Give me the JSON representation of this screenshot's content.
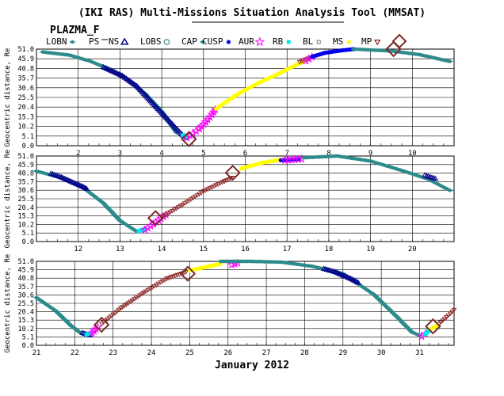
{
  "title": "(IKI RAS) Multi-Missions Situation Analysis Tool (MMSAT)",
  "subtitle": "PLAZMA_F",
  "x_axis_title": "January 2012",
  "legend": [
    {
      "label": "LOBN",
      "symbol": "diamond-fill",
      "color": "#2e8b8b"
    },
    {
      "label": "PS",
      "symbol": "bar",
      "color": "#2e8b8b"
    },
    {
      "label": "NS",
      "symbol": "triangle",
      "color": "#00008b"
    },
    {
      "label": "LOBS",
      "symbol": "circle",
      "color": "#2e8b8b"
    },
    {
      "label": "CAP",
      "symbol": "diamond-fill",
      "color": "#2e8b8b"
    },
    {
      "label": "CUSP",
      "symbol": "dot",
      "color": "#0000ee"
    },
    {
      "label": "AUR",
      "symbol": "star",
      "color": "#ff00ff"
    },
    {
      "label": "RB",
      "symbol": "square-fill",
      "color": "#00e5ee"
    },
    {
      "label": "BL",
      "symbol": "square",
      "color": "#777777"
    },
    {
      "label": "MS",
      "symbol": "dot",
      "color": "#ffff00"
    },
    {
      "label": "MP",
      "symbol": "triangle-down",
      "color": "#8b2323"
    },
    {
      "label": "",
      "symbol": "big-diamond",
      "color": "#7a2a2a"
    }
  ],
  "colors": {
    "PS": "#2e8b8b",
    "NS": "#00008b",
    "CUSP": "#0000ee",
    "AUR": "#ff00ff",
    "RB": "#00e5ee",
    "MS": "#ffff00",
    "MP": "#8b2323",
    "BIGMP": "#7a2a2a"
  },
  "chart_data": [
    {
      "type": "scatter",
      "ylabel": "Geocentric distance, Re",
      "xlim": [
        1,
        11
      ],
      "ylim": [
        0,
        51
      ],
      "xticks": [
        2,
        3,
        4,
        5,
        6,
        7,
        8,
        9,
        10
      ],
      "yticks": [
        0.0,
        5.1,
        10.2,
        15.3,
        20.4,
        25.5,
        30.6,
        35.7,
        40.8,
        45.9,
        51.0
      ],
      "segments": [
        {
          "region": "PS",
          "pts": [
            [
              1.15,
              49.5
            ],
            [
              1.8,
              47.8
            ],
            [
              2.3,
              44.5
            ],
            [
              2.8,
              40.0
            ],
            [
              3.2,
              34.5
            ],
            [
              3.6,
              27.5
            ],
            [
              4.0,
              18.0
            ],
            [
              4.2,
              12.0
            ],
            [
              4.35,
              7.0
            ]
          ]
        },
        {
          "region": "NS",
          "pts": [
            [
              2.6,
              41.5
            ],
            [
              3.05,
              37.0
            ],
            [
              3.4,
              31.5
            ],
            [
              4.5,
              5.5
            ],
            [
              4.6,
              4.5
            ]
          ]
        },
        {
          "region": "RB",
          "pts": [
            [
              4.5,
              5.6
            ],
            [
              4.6,
              4.8
            ]
          ]
        },
        {
          "region": "AUR",
          "pts": [
            [
              4.6,
              4.2
            ],
            [
              4.75,
              6.5
            ],
            [
              4.9,
              9.0
            ],
            [
              5.05,
              12.5
            ],
            [
              5.2,
              16.5
            ],
            [
              5.28,
              19.0
            ]
          ]
        },
        {
          "region": "MS",
          "pts": [
            [
              5.3,
              19.5
            ],
            [
              5.8,
              27.0
            ],
            [
              6.3,
              33.0
            ],
            [
              6.8,
              38.0
            ],
            [
              7.2,
              42.5
            ],
            [
              7.4,
              44.5
            ]
          ]
        },
        {
          "region": "MP",
          "pts": [
            [
              7.3,
              44.2
            ],
            [
              7.55,
              46.5
            ]
          ]
        },
        {
          "region": "AUR",
          "pts": [
            [
              7.45,
              44.8
            ],
            [
              7.6,
              46.8
            ]
          ]
        },
        {
          "region": "CUSP",
          "pts": [
            [
              7.6,
              47.0
            ],
            [
              7.9,
              49.0
            ],
            [
              8.3,
              50.3
            ],
            [
              8.6,
              51.0
            ]
          ]
        },
        {
          "region": "PS",
          "pts": [
            [
              8.6,
              51.0
            ],
            [
              9.5,
              50.0
            ],
            [
              10.2,
              48.0
            ],
            [
              10.9,
              44.5
            ]
          ]
        }
      ],
      "big_markers": [
        [
          4.65,
          3.5
        ],
        [
          9.55,
          51.0
        ]
      ]
    },
    {
      "type": "scatter",
      "ylabel": "Geocentric distance, Re",
      "xlim": [
        11,
        21
      ],
      "ylim": [
        0,
        51
      ],
      "xticks": [
        12,
        13,
        14,
        15,
        16,
        17,
        18,
        19,
        20
      ],
      "yticks": [
        0.0,
        5.1,
        10.2,
        15.3,
        20.4,
        25.5,
        30.6,
        35.7,
        40.8,
        45.9,
        51.0
      ],
      "segments": [
        {
          "region": "PS",
          "pts": [
            [
              11.0,
              42.0
            ],
            [
              11.6,
              38.0
            ],
            [
              12.1,
              32.5
            ],
            [
              12.6,
              23.0
            ],
            [
              13.0,
              12.5
            ],
            [
              13.4,
              6.0
            ]
          ]
        },
        {
          "region": "NS",
          "pts": [
            [
              11.35,
              40.5
            ],
            [
              11.6,
              38.3
            ],
            [
              12.1,
              32.8
            ],
            [
              12.2,
              31.5
            ]
          ]
        },
        {
          "region": "RB",
          "pts": [
            [
              13.45,
              6.3
            ],
            [
              13.6,
              7.5
            ]
          ]
        },
        {
          "region": "AUR",
          "pts": [
            [
              13.6,
              7.0
            ],
            [
              13.8,
              10.5
            ],
            [
              14.1,
              16.0
            ]
          ]
        },
        {
          "region": "MP",
          "pts": [
            [
              14.0,
              14.5
            ],
            [
              14.5,
              22.0
            ],
            [
              15.0,
              30.0
            ],
            [
              15.5,
              36.0
            ],
            [
              15.7,
              38.0
            ]
          ]
        },
        {
          "region": "MS",
          "pts": [
            [
              15.9,
              43.5
            ],
            [
              16.4,
              47.0
            ],
            [
              16.9,
              49.0
            ]
          ]
        },
        {
          "region": "CUSP",
          "pts": [
            [
              16.85,
              48.5
            ],
            [
              17.3,
              49.3
            ]
          ]
        },
        {
          "region": "AUR",
          "pts": [
            [
              16.95,
              48.5
            ],
            [
              17.35,
              49.2
            ]
          ]
        },
        {
          "region": "PS",
          "pts": [
            [
              17.4,
              50.0
            ],
            [
              18.2,
              51.0
            ],
            [
              19.0,
              48.0
            ],
            [
              19.8,
              42.0
            ],
            [
              20.4,
              37.0
            ],
            [
              20.9,
              30.5
            ]
          ]
        },
        {
          "region": "NS",
          "pts": [
            [
              20.3,
              39.5
            ],
            [
              20.55,
              37.5
            ]
          ]
        }
      ],
      "big_markers": [
        [
          13.85,
          14.0
        ],
        [
          15.7,
          41.0
        ]
      ]
    },
    {
      "type": "scatter",
      "ylabel": "Geocentric distance, Re",
      "xlim": [
        21,
        31.9
      ],
      "ylim": [
        0,
        51
      ],
      "xticks": [
        21,
        22,
        23,
        24,
        25,
        26,
        27,
        28,
        29,
        30,
        31
      ],
      "yticks": [
        0.0,
        5.1,
        10.2,
        15.3,
        20.4,
        25.5,
        30.6,
        35.7,
        40.8,
        45.9,
        51.0
      ],
      "segments": [
        {
          "region": "PS",
          "pts": [
            [
              21.0,
              29.0
            ],
            [
              21.5,
              21.0
            ],
            [
              21.9,
              12.0
            ],
            [
              22.15,
              7.5
            ]
          ]
        },
        {
          "region": "NS",
          "pts": [
            [
              22.2,
              7.5
            ],
            [
              22.4,
              6.0
            ]
          ]
        },
        {
          "region": "RB",
          "pts": [
            [
              22.3,
              6.5
            ],
            [
              22.45,
              7.5
            ]
          ]
        },
        {
          "region": "AUR",
          "pts": [
            [
              22.45,
              7.5
            ],
            [
              22.6,
              11.0
            ]
          ]
        },
        {
          "region": "MP",
          "pts": [
            [
              22.7,
              13.0
            ],
            [
              23.2,
              22.5
            ],
            [
              23.8,
              32.0
            ],
            [
              24.4,
              40.5
            ],
            [
              24.9,
              44.5
            ]
          ]
        },
        {
          "region": "MS",
          "pts": [
            [
              25.0,
              45.5
            ],
            [
              25.5,
              48.0
            ],
            [
              25.8,
              49.5
            ]
          ]
        },
        {
          "region": "AUR",
          "pts": [
            [
              26.1,
              49.0
            ],
            [
              26.25,
              50.0
            ]
          ]
        },
        {
          "region": "PS",
          "pts": [
            [
              25.8,
              51.0
            ],
            [
              26.6,
              51.0
            ],
            [
              27.4,
              50.5
            ],
            [
              28.2,
              48.0
            ],
            [
              29.0,
              43.5
            ],
            [
              29.8,
              31.0
            ],
            [
              30.4,
              17.5
            ],
            [
              30.8,
              8.0
            ],
            [
              31.0,
              6.0
            ]
          ]
        },
        {
          "region": "NS",
          "pts": [
            [
              28.5,
              46.5
            ],
            [
              28.8,
              44.5
            ],
            [
              29.2,
              40.5
            ],
            [
              29.4,
              38.0
            ]
          ]
        },
        {
          "region": "AUR",
          "pts": [
            [
              31.05,
              5.5
            ],
            [
              31.15,
              7.0
            ]
          ]
        },
        {
          "region": "RB",
          "pts": [
            [
              31.15,
              7.0
            ],
            [
              31.25,
              9.0
            ]
          ]
        },
        {
          "region": "MS",
          "pts": [
            [
              31.3,
              10.0
            ],
            [
              31.45,
              12.0
            ]
          ]
        },
        {
          "region": "MP",
          "pts": [
            [
              31.5,
              13.0
            ],
            [
              31.7,
              17.0
            ],
            [
              31.9,
              21.5
            ]
          ]
        }
      ],
      "big_markers": [
        [
          22.7,
          12.5
        ],
        [
          24.95,
          43.5
        ],
        [
          31.35,
          11.5
        ]
      ]
    }
  ]
}
